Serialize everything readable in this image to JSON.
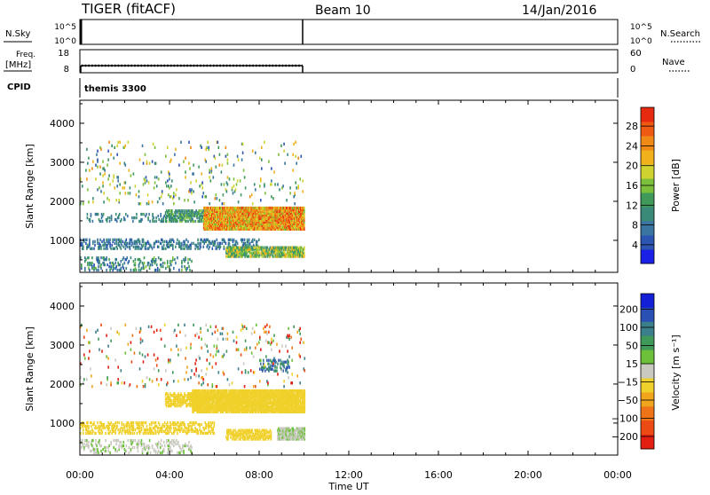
{
  "header": {
    "title": "TIGER (fitACF)",
    "beam": "Beam 10",
    "date": "14/Jan/2016"
  },
  "side_labels": {
    "nsky": "N.Sky",
    "nsearch": "N.Search",
    "freq": "Freq.",
    "mhz": "[MHz]",
    "nave": "Nave",
    "cpid": "CPID",
    "cpid_value": "themis 3300"
  },
  "strip_ticks": {
    "nsky_left": [
      "10^5",
      "10^0"
    ],
    "nsky_right": [
      "10^5",
      "10^0"
    ],
    "freq_left": [
      "18",
      "8"
    ],
    "freq_right": [
      "60",
      "0"
    ]
  },
  "colorbars": {
    "power": {
      "label": "Power [dB]",
      "ticks": [
        "28",
        "24",
        "20",
        "16",
        "12",
        "8",
        "4"
      ],
      "colors": [
        "#1a20e6",
        "#2b55b0",
        "#3a74a0",
        "#3a8a7a",
        "#3f9a5a",
        "#7cbf3a",
        "#cfd22f",
        "#f0b11c",
        "#f08a17",
        "#ef5a12",
        "#e52a10"
      ]
    },
    "velocity": {
      "label": "Velocity [m s⁻¹]",
      "ticks": [
        "200",
        "100",
        "50",
        "15",
        "−15",
        "−50",
        "−100",
        "−200"
      ],
      "colors": [
        "#1420d6",
        "#2a50b4",
        "#3a7f8a",
        "#3f9a5a",
        "#6cc03a",
        "#c9c9bf",
        "#f0d02a",
        "#f0a51c",
        "#ef7418",
        "#ec4a14",
        "#e21e10"
      ]
    }
  },
  "chart_data": [
    {
      "type": "heatmap",
      "name": "power",
      "title": "Power",
      "xlabel": "Time UT",
      "ylabel": "Slant Range [km]",
      "x_ticks": [
        "00:00",
        "04:00",
        "08:00",
        "12:00",
        "16:00",
        "20:00",
        "00:00"
      ],
      "x_range_hours": [
        0,
        24
      ],
      "y_ticks": [
        "1000",
        "2000",
        "3000",
        "4000"
      ],
      "y_range_km": [
        180,
        4590
      ],
      "data_end_hour": 10,
      "clusters": [
        {
          "t": [
            5.5,
            10.0
          ],
          "r": [
            1250,
            1800
          ],
          "v": [
            16,
            30
          ],
          "density": 0.95
        },
        {
          "t": [
            3.8,
            5.5
          ],
          "r": [
            1450,
            1750
          ],
          "v": [
            8,
            16
          ],
          "density": 0.55
        },
        {
          "t": [
            0.3,
            3.8
          ],
          "r": [
            1450,
            1650
          ],
          "v": [
            6,
            12
          ],
          "density": 0.18
        },
        {
          "t": [
            0.0,
            8.0
          ],
          "r": [
            750,
            1000
          ],
          "v": [
            4,
            12
          ],
          "density": 0.3
        },
        {
          "t": [
            6.5,
            10.0
          ],
          "r": [
            550,
            820
          ],
          "v": [
            10,
            22
          ],
          "density": 0.75
        },
        {
          "t": [
            0.0,
            5.0
          ],
          "r": [
            200,
            550
          ],
          "v": [
            4,
            16
          ],
          "density": 0.2
        },
        {
          "t": [
            0.0,
            10.0
          ],
          "r": [
            1900,
            3500
          ],
          "v": [
            4,
            24
          ],
          "density": 0.03
        }
      ]
    },
    {
      "type": "heatmap",
      "name": "velocity",
      "title": "Velocity",
      "xlabel": "Time UT",
      "ylabel": "Slant Range [km]",
      "x_ticks": [
        "00:00",
        "04:00",
        "08:00",
        "12:00",
        "16:00",
        "20:00",
        "00:00"
      ],
      "x_range_hours": [
        0,
        24
      ],
      "y_ticks": [
        "1000",
        "2000",
        "3000",
        "4000"
      ],
      "y_range_km": [
        180,
        4590
      ],
      "data_end_hour": 10,
      "clusters": [
        {
          "t": [
            5.0,
            10.0
          ],
          "r": [
            1250,
            1800
          ],
          "v": [
            -14,
            14
          ],
          "density": 0.9
        },
        {
          "t": [
            3.8,
            5.5
          ],
          "r": [
            1400,
            1750
          ],
          "v": [
            -14,
            14
          ],
          "density": 0.55
        },
        {
          "t": [
            0.0,
            6.0
          ],
          "r": [
            700,
            1000
          ],
          "v": [
            -14,
            14
          ],
          "density": 0.35
        },
        {
          "t": [
            6.5,
            8.5
          ],
          "r": [
            550,
            800
          ],
          "v": [
            -14,
            14
          ],
          "density": 0.55
        },
        {
          "t": [
            8.8,
            10.0
          ],
          "r": [
            550,
            850
          ],
          "v": [
            15,
            70
          ],
          "density": 0.85
        },
        {
          "t": [
            0.0,
            5.0
          ],
          "r": [
            200,
            550
          ],
          "v": [
            15,
            60
          ],
          "density": 0.2
        },
        {
          "t": [
            8.0,
            9.5
          ],
          "r": [
            2300,
            2600
          ],
          "v": [
            60,
            200
          ],
          "density": 0.25
        },
        {
          "t": [
            0.0,
            10.0
          ],
          "r": [
            1900,
            3500
          ],
          "v": [
            -150,
            150
          ],
          "density": 0.03
        }
      ]
    }
  ]
}
